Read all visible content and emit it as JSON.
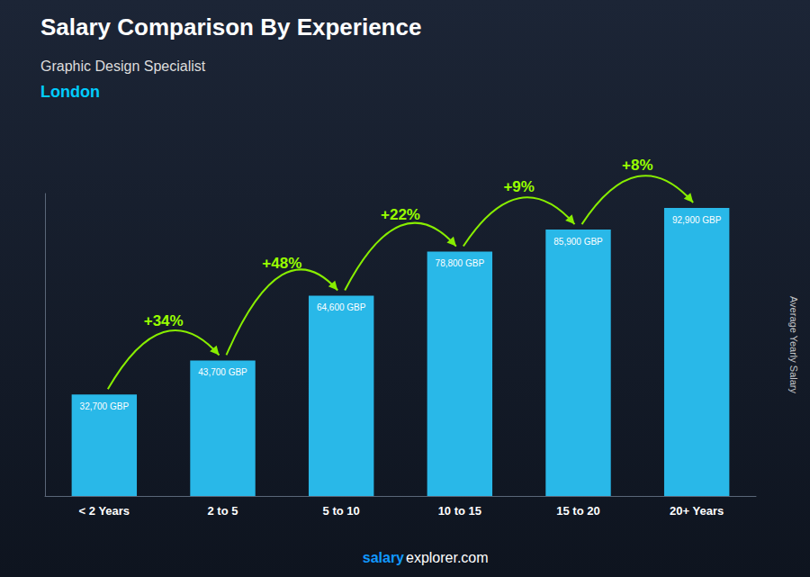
{
  "chart_data": {
    "type": "bar",
    "title": "Salary Comparison By Experience",
    "subtitle": "Graphic Design Specialist",
    "city": "London",
    "ylabel": "Average Yearly Salary",
    "footer": [
      "salary",
      "explorer.com"
    ],
    "categories": [
      "< 2 Years",
      "2 to 5",
      "5 to 10",
      "10 to 15",
      "15 to 20",
      "20+ Years"
    ],
    "values": [
      32700,
      43700,
      64600,
      78800,
      85900,
      92900
    ],
    "value_labels": [
      "32,700 GBP",
      "43,700 GBP",
      "64,600 GBP",
      "78,800 GBP",
      "85,900 GBP",
      "92,900 GBP"
    ],
    "data_labels": true,
    "annotations": [
      "+34%",
      "+48%",
      "+22%",
      "+9%",
      "+8%"
    ],
    "color": "#29b8e8",
    "ylim": [
      0,
      97545
    ],
    "tick_labels": "x",
    "grid": false
  }
}
